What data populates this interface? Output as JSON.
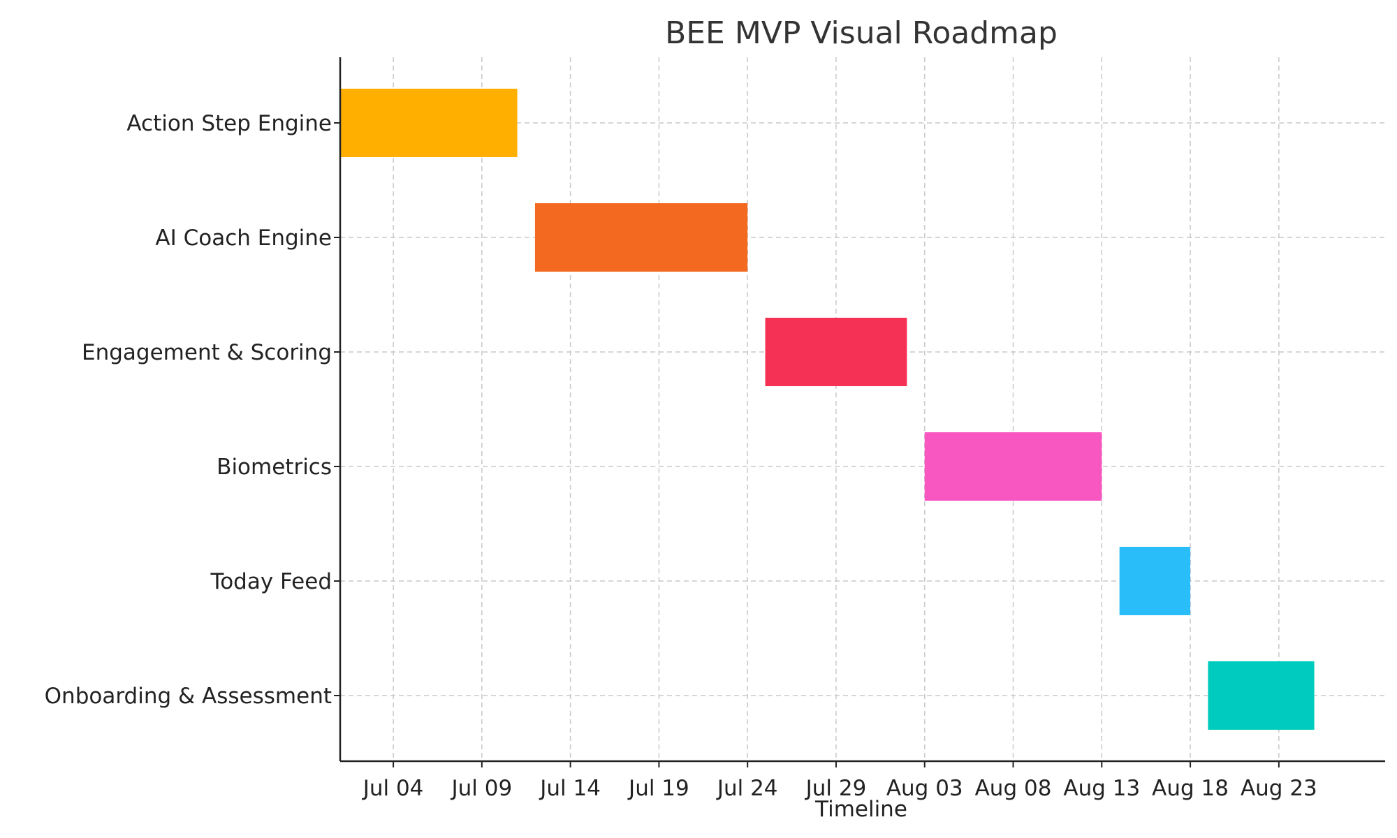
{
  "chart_data": {
    "type": "gantt",
    "title": "BEE MVP Visual Roadmap",
    "xlabel": "Timeline",
    "ylabel": "",
    "x_axis": "date",
    "xlim": [
      "2025-07-01",
      "2025-08-29"
    ],
    "xticks": [
      {
        "date": "2025-07-04",
        "label": "Jul 04"
      },
      {
        "date": "2025-07-09",
        "label": "Jul 09"
      },
      {
        "date": "2025-07-14",
        "label": "Jul 14"
      },
      {
        "date": "2025-07-19",
        "label": "Jul 19"
      },
      {
        "date": "2025-07-24",
        "label": "Jul 24"
      },
      {
        "date": "2025-07-29",
        "label": "Jul 29"
      },
      {
        "date": "2025-08-03",
        "label": "Aug 03"
      },
      {
        "date": "2025-08-08",
        "label": "Aug 08"
      },
      {
        "date": "2025-08-13",
        "label": "Aug 13"
      },
      {
        "date": "2025-08-18",
        "label": "Aug 18"
      },
      {
        "date": "2025-08-23",
        "label": "Aug 23"
      }
    ],
    "grid": true,
    "tasks": [
      {
        "name": "Action Step Engine",
        "start": "2025-07-01",
        "end": "2025-07-11",
        "color": "#FFAF00"
      },
      {
        "name": "AI Coach Engine",
        "start": "2025-07-12",
        "end": "2025-07-24",
        "color": "#F46920"
      },
      {
        "name": "Engagement & Scoring",
        "start": "2025-07-25",
        "end": "2025-08-02",
        "color": "#F53255"
      },
      {
        "name": "Biometrics",
        "start": "2025-08-03",
        "end": "2025-08-13",
        "color": "#F857C1"
      },
      {
        "name": "Today Feed",
        "start": "2025-08-14",
        "end": "2025-08-18",
        "color": "#29BDFA"
      },
      {
        "name": "Onboarding & Assessment",
        "start": "2025-08-19",
        "end": "2025-08-25",
        "color": "#00CBBF"
      }
    ]
  }
}
